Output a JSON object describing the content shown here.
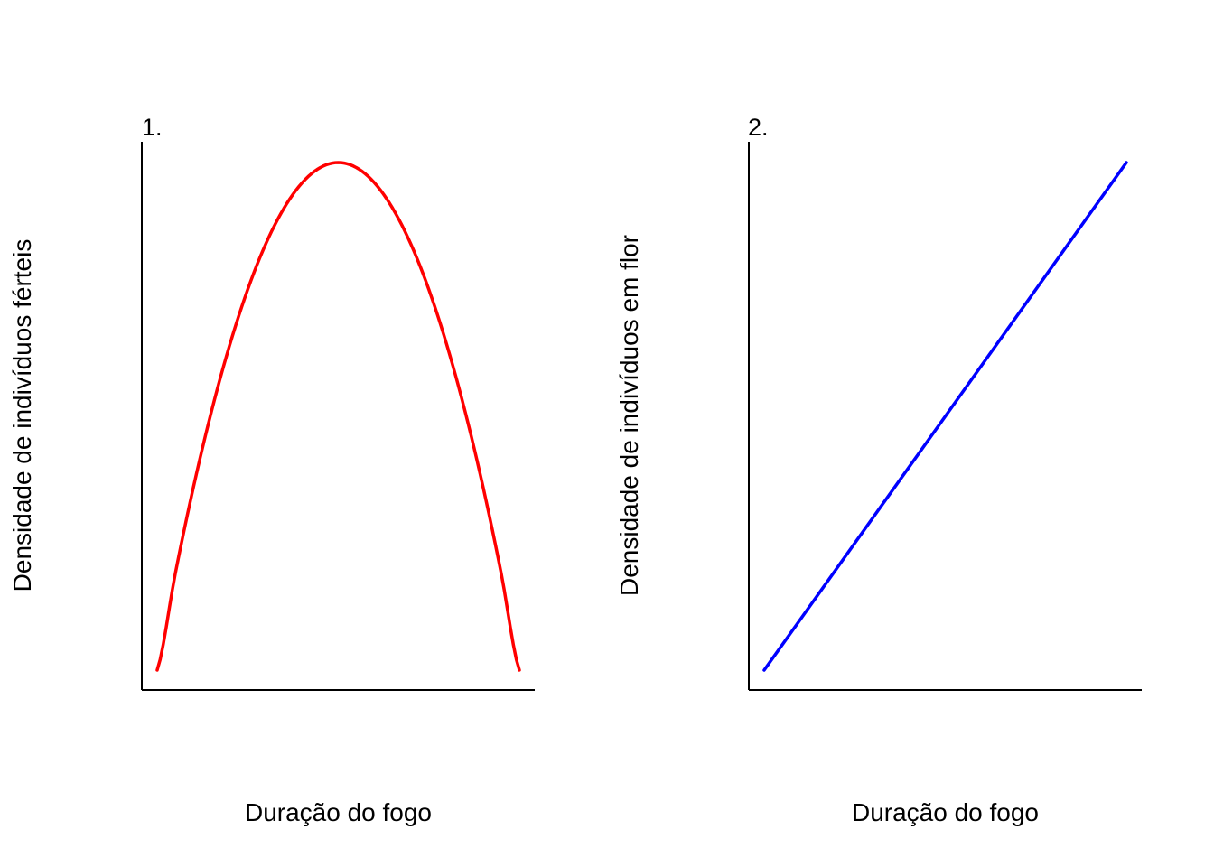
{
  "chart_data": [
    {
      "type": "line",
      "panel_label": "1.",
      "xlabel": "Duração do fogo",
      "ylabel": "Densidade de indivíduos férteis",
      "ticks": false,
      "grid": false,
      "xlim": [
        0,
        1
      ],
      "ylim": [
        0,
        1
      ],
      "series": [
        {
          "color": "#ff0000",
          "x": [
            0.0,
            0.05,
            0.1,
            0.15,
            0.2,
            0.25,
            0.3,
            0.35,
            0.4,
            0.45,
            0.5,
            0.55,
            0.6,
            0.65,
            0.7,
            0.75,
            0.8,
            0.85,
            0.9,
            0.95,
            1.0
          ],
          "y": [
            0.0,
            0.19,
            0.36,
            0.51,
            0.64,
            0.75,
            0.84,
            0.91,
            0.96,
            0.99,
            1.0,
            0.99,
            0.96,
            0.91,
            0.84,
            0.75,
            0.64,
            0.51,
            0.36,
            0.19,
            0.0
          ]
        }
      ]
    },
    {
      "type": "line",
      "panel_label": "2.",
      "xlabel": "Duração do fogo",
      "ylabel": "Densidade de indivíduos em flor",
      "ticks": false,
      "grid": false,
      "xlim": [
        0,
        1
      ],
      "ylim": [
        0,
        1
      ],
      "series": [
        {
          "color": "#0000ff",
          "x": [
            0.0,
            1.0
          ],
          "y": [
            0.0,
            1.0
          ]
        }
      ]
    }
  ]
}
